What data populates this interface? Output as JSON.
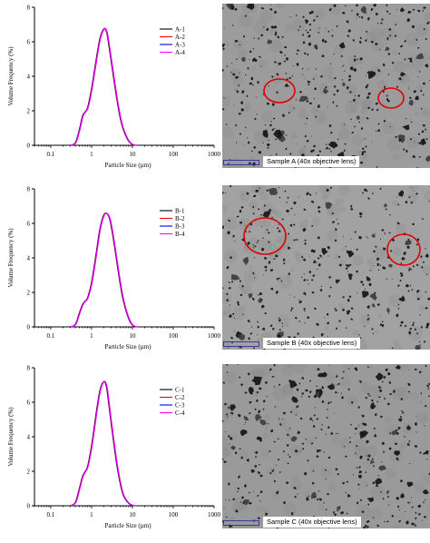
{
  "chart_data": [
    {
      "type": "line",
      "xlabel": "Particle Size (µm)",
      "ylabel": "Volume Frequency (%)",
      "xscale": "log",
      "xlim": [
        0.04,
        1000
      ],
      "ylim": [
        0,
        8
      ],
      "xticks": [
        "0.1",
        "1",
        "10",
        "100",
        "1000"
      ],
      "yticks": [
        "0",
        "2",
        "4",
        "6",
        "8"
      ],
      "legend_position": "top-right",
      "series": [
        {
          "name": "A-1",
          "color": "#000000"
        },
        {
          "name": "A-2",
          "color": "#ff0000"
        },
        {
          "name": "A-3",
          "color": "#0000ff"
        },
        {
          "name": "A-4",
          "color": "#ff00ff"
        }
      ],
      "x": [
        0.3,
        0.4,
        0.5,
        0.6,
        0.7,
        0.8,
        1.0,
        1.3,
        1.6,
        2.0,
        2.3,
        2.6,
        3.0,
        4.0,
        5.0,
        6.0,
        8.0,
        10.0,
        12.0
      ],
      "values": [
        0,
        0.15,
        0.9,
        1.7,
        1.95,
        2.2,
        3.3,
        5.0,
        6.2,
        6.75,
        6.6,
        5.9,
        4.9,
        2.9,
        1.6,
        0.9,
        0.25,
        0.05,
        0
      ],
      "micrograph_caption": "Sample A (40x objective lens)"
    },
    {
      "type": "line",
      "xlabel": "Particle Size (µm)",
      "ylabel": "Volume Frequency (%)",
      "xscale": "log",
      "xlim": [
        0.04,
        1000
      ],
      "ylim": [
        0,
        8
      ],
      "xticks": [
        "0.1",
        "1",
        "10",
        "100",
        "1000"
      ],
      "yticks": [
        "0",
        "2",
        "4",
        "6",
        "8"
      ],
      "legend_position": "top-right",
      "series": [
        {
          "name": "B-1",
          "color": "#000000"
        },
        {
          "name": "B-2",
          "color": "#ff0000"
        },
        {
          "name": "B-3",
          "color": "#0000ff"
        },
        {
          "name": "B-4",
          "color": "#ff00ff"
        }
      ],
      "x": [
        0.3,
        0.4,
        0.5,
        0.6,
        0.7,
        0.8,
        1.0,
        1.3,
        1.6,
        2.0,
        2.4,
        2.8,
        3.3,
        4.0,
        5.0,
        6.0,
        8.0,
        10.0,
        13.0
      ],
      "values": [
        0,
        0.15,
        0.8,
        1.3,
        1.5,
        1.7,
        2.6,
        4.3,
        5.7,
        6.5,
        6.55,
        6.2,
        5.3,
        4.0,
        2.5,
        1.5,
        0.5,
        0.1,
        0
      ],
      "micrograph_caption": "Sample B (40x objective lens)"
    },
    {
      "type": "line",
      "xlabel": "Particle Size (µm)",
      "ylabel": "Volume Frequency (%)",
      "xscale": "log",
      "xlim": [
        0.04,
        1000
      ],
      "ylim": [
        0,
        8
      ],
      "xticks": [
        "0.1",
        "1",
        "10",
        "100",
        "1000"
      ],
      "yticks": [
        "0",
        "2",
        "4",
        "6",
        "8"
      ],
      "legend_position": "top-right",
      "series": [
        {
          "name": "C-1",
          "color": "#000000"
        },
        {
          "name": "C-2",
          "color": "#ff0000"
        },
        {
          "name": "C-3",
          "color": "#0000ff"
        },
        {
          "name": "C-4",
          "color": "#ff00ff"
        }
      ],
      "x": [
        0.3,
        0.4,
        0.5,
        0.6,
        0.7,
        0.8,
        1.0,
        1.3,
        1.6,
        2.0,
        2.3,
        2.6,
        3.0,
        4.0,
        5.0,
        6.0,
        8.0,
        10.0,
        12.0
      ],
      "values": [
        0,
        0.2,
        1.0,
        1.7,
        2.0,
        2.3,
        3.5,
        5.4,
        6.7,
        7.2,
        6.9,
        6.0,
        4.8,
        2.6,
        1.3,
        0.6,
        0.15,
        0.03,
        0
      ],
      "micrograph_caption": "Sample C (40x objective lens)"
    }
  ]
}
